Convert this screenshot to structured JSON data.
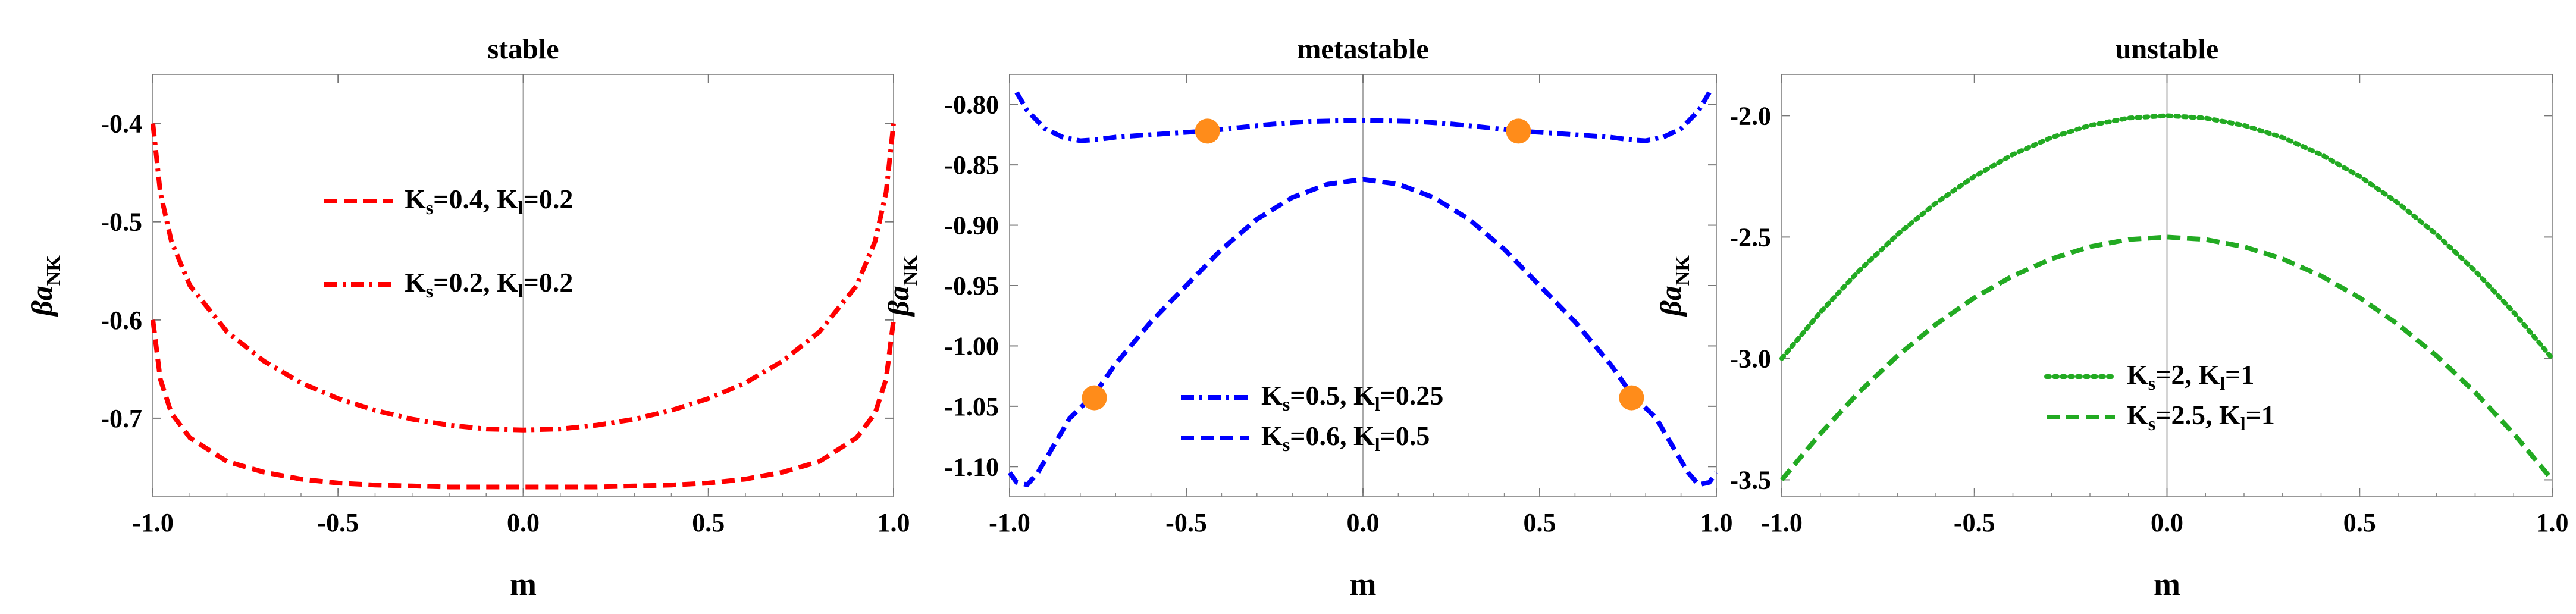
{
  "chart_data": [
    {
      "type": "line",
      "title": "stable",
      "xlabel": "m",
      "ylabel": {
        "main": "βa",
        "sub": "NK"
      },
      "xlim": [
        -1.0,
        1.0
      ],
      "ylim": [
        -0.78,
        -0.35
      ],
      "xticks": [
        "-1.0",
        "-0.5",
        "0.0",
        "0.5",
        "1.0"
      ],
      "yticks": [
        {
          "value": -0.4,
          "label": "-0.4"
        },
        {
          "value": -0.5,
          "label": "-0.5"
        },
        {
          "value": -0.6,
          "label": "-0.6"
        },
        {
          "value": -0.7,
          "label": "-0.7"
        }
      ],
      "series": [
        {
          "name": "K_s=0.4, K_l=0.2",
          "legend": {
            "ks": "0.4",
            "kl": "0.2"
          },
          "color": "#ff0000",
          "dash": "dashed",
          "x": [
            -1.0,
            -0.98,
            -0.95,
            -0.9,
            -0.8,
            -0.7,
            -0.6,
            -0.5,
            -0.4,
            -0.3,
            -0.2,
            -0.1,
            0.0,
            0.1,
            0.2,
            0.3,
            0.4,
            0.5,
            0.6,
            0.7,
            0.8,
            0.9,
            0.95,
            0.98,
            1.0
          ],
          "y": [
            -0.6,
            -0.66,
            -0.695,
            -0.72,
            -0.744,
            -0.755,
            -0.762,
            -0.766,
            -0.768,
            -0.769,
            -0.77,
            -0.77,
            -0.77,
            -0.77,
            -0.77,
            -0.769,
            -0.768,
            -0.766,
            -0.762,
            -0.755,
            -0.744,
            -0.72,
            -0.695,
            -0.66,
            -0.6
          ]
        },
        {
          "name": "K_s=0.2, K_l=0.2",
          "legend": {
            "ks": "0.2",
            "kl": "0.2"
          },
          "color": "#ff0000",
          "dash": "dashdot",
          "x": [
            -1.0,
            -0.98,
            -0.95,
            -0.9,
            -0.8,
            -0.7,
            -0.6,
            -0.5,
            -0.4,
            -0.3,
            -0.2,
            -0.1,
            0.0,
            0.1,
            0.2,
            0.3,
            0.4,
            0.5,
            0.6,
            0.7,
            0.8,
            0.9,
            0.95,
            0.98,
            1.0
          ],
          "y": [
            -0.4,
            -0.47,
            -0.52,
            -0.565,
            -0.612,
            -0.642,
            -0.664,
            -0.68,
            -0.692,
            -0.701,
            -0.707,
            -0.711,
            -0.712,
            -0.711,
            -0.707,
            -0.701,
            -0.692,
            -0.68,
            -0.664,
            -0.642,
            -0.612,
            -0.565,
            -0.52,
            -0.47,
            -0.4
          ]
        }
      ],
      "legend_position": "center"
    },
    {
      "type": "line",
      "title": "metastable",
      "xlabel": "m",
      "ylabel": {
        "main": "βa",
        "sub": "NK"
      },
      "xlim": [
        -1.0,
        1.0
      ],
      "ylim": [
        -1.125,
        -0.775
      ],
      "xticks": [
        "-1.0",
        "-0.5",
        "0.0",
        "0.5",
        "1.0"
      ],
      "yticks": [
        {
          "value": -0.8,
          "label": "-0.80"
        },
        {
          "value": -0.85,
          "label": "-0.85"
        },
        {
          "value": -0.9,
          "label": "-0.90"
        },
        {
          "value": -0.95,
          "label": "-0.95"
        },
        {
          "value": -1.0,
          "label": "-1.00"
        },
        {
          "value": -1.05,
          "label": "-1.05"
        },
        {
          "value": -1.1,
          "label": "-1.10"
        }
      ],
      "series": [
        {
          "name": "K_s=0.5, K_l=0.25",
          "legend": {
            "ks": "0.5",
            "kl": "0.25"
          },
          "color": "#0000ff",
          "dash": "dashdot",
          "x": [
            -0.98,
            -0.95,
            -0.9,
            -0.85,
            -0.8,
            -0.75,
            -0.7,
            -0.6,
            -0.5,
            -0.44,
            -0.35,
            -0.25,
            -0.15,
            0.0,
            0.15,
            0.25,
            0.35,
            0.44,
            0.5,
            0.6,
            0.7,
            0.75,
            0.8,
            0.85,
            0.9,
            0.95,
            0.98
          ],
          "y": [
            -0.79,
            -0.805,
            -0.82,
            -0.827,
            -0.83,
            -0.829,
            -0.827,
            -0.825,
            -0.823,
            -0.822,
            -0.819,
            -0.816,
            -0.814,
            -0.813,
            -0.814,
            -0.816,
            -0.819,
            -0.822,
            -0.823,
            -0.825,
            -0.827,
            -0.829,
            -0.83,
            -0.827,
            -0.82,
            -0.805,
            -0.79
          ]
        },
        {
          "name": "K_s=0.6, K_l=0.5",
          "legend": {
            "ks": "0.6",
            "kl": "0.5"
          },
          "color": "#0000ff",
          "dash": "dashed",
          "x": [
            -1.0,
            -0.98,
            -0.95,
            -0.92,
            -0.88,
            -0.83,
            -0.76,
            -0.7,
            -0.6,
            -0.5,
            -0.4,
            -0.3,
            -0.2,
            -0.1,
            0.0,
            0.1,
            0.2,
            0.3,
            0.4,
            0.5,
            0.6,
            0.7,
            0.76,
            0.83,
            0.88,
            0.92,
            0.95,
            0.98,
            1.0
          ],
          "y": [
            -1.105,
            -1.113,
            -1.115,
            -1.105,
            -1.085,
            -1.06,
            -1.04,
            -1.015,
            -0.98,
            -0.95,
            -0.92,
            -0.895,
            -0.877,
            -0.866,
            -0.862,
            -0.866,
            -0.877,
            -0.895,
            -0.92,
            -0.95,
            -0.98,
            -1.015,
            -1.04,
            -1.06,
            -1.085,
            -1.105,
            -1.115,
            -1.113,
            -1.105
          ]
        }
      ],
      "markers": {
        "color": "#ff8c1a",
        "points": [
          {
            "x": -0.44,
            "y": -0.822
          },
          {
            "x": 0.44,
            "y": -0.822
          },
          {
            "x": -0.76,
            "y": -1.043
          },
          {
            "x": 0.76,
            "y": -1.043
          }
        ]
      },
      "legend_position": "bottom-center"
    },
    {
      "type": "line",
      "title": "unstable",
      "xlabel": "m",
      "ylabel": {
        "main": "βa",
        "sub": "NK"
      },
      "xlim": [
        -1.0,
        1.0
      ],
      "ylim": [
        -3.57,
        -1.83
      ],
      "xticks": [
        "-1.0",
        "-0.5",
        "0.0",
        "0.5",
        "1.0"
      ],
      "yticks": [
        {
          "value": -2.0,
          "label": "-2.0"
        },
        {
          "value": -2.5,
          "label": "-2.5"
        },
        {
          "value": -3.0,
          "label": "-3.0"
        },
        {
          "value": -3.5,
          "label": "-3.5"
        }
      ],
      "series": [
        {
          "name": "K_s=2, K_l=1",
          "legend": {
            "ks": "2",
            "kl": "1"
          },
          "color": "#22aa22",
          "dash": "dotted",
          "x": [
            -1.0,
            -0.9,
            -0.8,
            -0.7,
            -0.6,
            -0.5,
            -0.4,
            -0.3,
            -0.2,
            -0.1,
            0.0,
            0.1,
            0.2,
            0.3,
            0.4,
            0.5,
            0.6,
            0.7,
            0.8,
            0.9,
            1.0
          ],
          "y": [
            -3.0,
            -2.81,
            -2.64,
            -2.49,
            -2.36,
            -2.25,
            -2.16,
            -2.09,
            -2.04,
            -2.01,
            -2.0,
            -2.01,
            -2.04,
            -2.09,
            -2.16,
            -2.25,
            -2.36,
            -2.49,
            -2.64,
            -2.81,
            -3.0
          ]
        },
        {
          "name": "K_s=2.5, K_l=1",
          "legend": {
            "ks": "2.5",
            "kl": "1"
          },
          "color": "#22aa22",
          "dash": "dashed",
          "x": [
            -1.0,
            -0.9,
            -0.8,
            -0.7,
            -0.6,
            -0.5,
            -0.4,
            -0.3,
            -0.2,
            -0.1,
            0.0,
            0.1,
            0.2,
            0.3,
            0.4,
            0.5,
            0.6,
            0.7,
            0.8,
            0.9,
            1.0
          ],
          "y": [
            -3.5,
            -3.31,
            -3.14,
            -2.99,
            -2.86,
            -2.75,
            -2.66,
            -2.59,
            -2.54,
            -2.51,
            -2.5,
            -2.51,
            -2.54,
            -2.59,
            -2.66,
            -2.75,
            -2.86,
            -2.99,
            -3.14,
            -3.31,
            -3.5
          ]
        }
      ],
      "legend_position": "bottom-center"
    }
  ]
}
